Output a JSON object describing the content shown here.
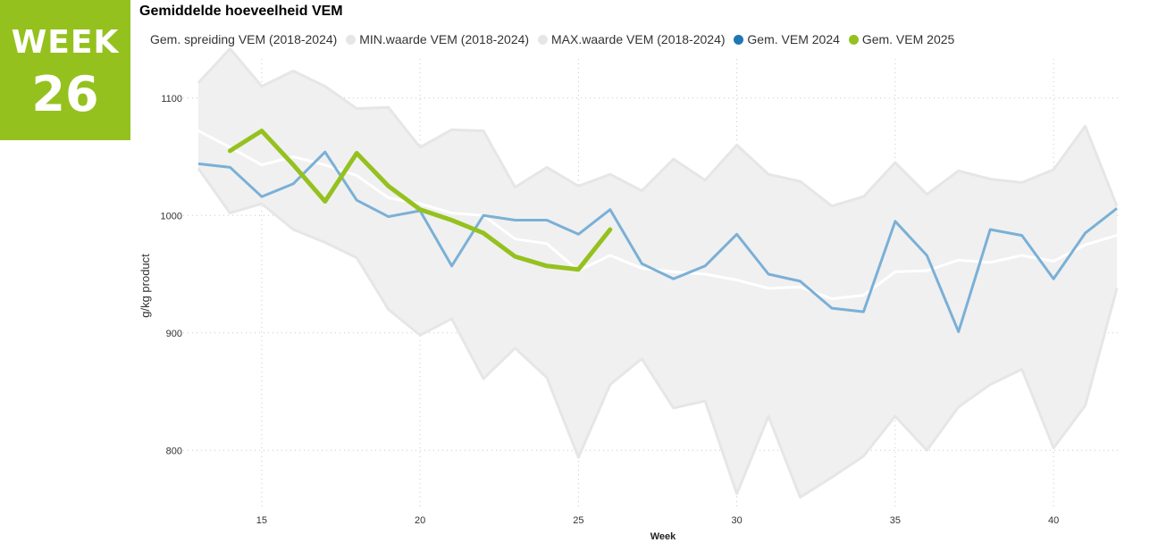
{
  "badge": {
    "label": "WEEK",
    "number": "26",
    "color": "#95c11f"
  },
  "chart_data": {
    "type": "line",
    "title": "Gemiddelde hoeveelheid VEM",
    "xlabel": "Week",
    "ylabel": "g/kg product",
    "xlim": [
      13,
      42
    ],
    "ylim": [
      750,
      1150
    ],
    "x_ticks": [
      15,
      20,
      25,
      30,
      35,
      40
    ],
    "y_ticks": [
      800,
      900,
      1000,
      1100
    ],
    "grid": true,
    "legend_position": "top",
    "x": [
      13,
      14,
      15,
      16,
      17,
      18,
      19,
      20,
      21,
      22,
      23,
      24,
      25,
      26,
      27,
      28,
      29,
      30,
      31,
      32,
      33,
      34,
      35,
      36,
      37,
      38,
      39,
      40,
      41,
      42
    ],
    "series": [
      {
        "name": "Gem. spreiding VEM (2018-2024)",
        "color": "#ffffff",
        "role": "mean-line",
        "values": [
          1072,
          1058,
          1043,
          1050,
          1043,
          1034,
          1015,
          1010,
          1002,
          1000,
          980,
          976,
          953,
          966,
          955,
          952,
          950,
          945,
          938,
          939,
          929,
          932,
          952,
          953,
          962,
          960,
          966,
          961,
          975,
          983
        ]
      },
      {
        "name": "MIN.waarde VEM (2018-2024)",
        "color": "#e6e6e6",
        "role": "band-min",
        "values": [
          1040,
          1002,
          1010,
          988,
          977,
          964,
          920,
          898,
          912,
          861,
          887,
          862,
          794,
          856,
          878,
          836,
          842,
          763,
          829,
          760,
          777,
          795,
          829,
          800,
          837,
          856,
          869,
          802,
          838,
          938
        ]
      },
      {
        "name": "MAX.waarde VEM (2018-2024)",
        "color": "#e6e6e6",
        "role": "band-max",
        "values": [
          1113,
          1142,
          1110,
          1123,
          1110,
          1091,
          1092,
          1058,
          1073,
          1072,
          1024,
          1041,
          1025,
          1035,
          1021,
          1048,
          1030,
          1060,
          1035,
          1029,
          1008,
          1016,
          1045,
          1018,
          1038,
          1031,
          1028,
          1039,
          1076,
          1008
        ]
      },
      {
        "name": "Gem. VEM 2024",
        "color": "#1f77b4",
        "line_color": "#7ab0d6",
        "role": "line",
        "values": [
          1044,
          1041,
          1016,
          1027,
          1054,
          1013,
          999,
          1004,
          957,
          1000,
          996,
          996,
          984,
          1005,
          959,
          946,
          957,
          984,
          950,
          944,
          921,
          918,
          995,
          966,
          901,
          988,
          983,
          946,
          985,
          1006
        ]
      },
      {
        "name": "Gem. VEM 2025",
        "color": "#95c11f",
        "role": "line-bold",
        "values": [
          null,
          1055,
          1072,
          1043,
          1012,
          1053,
          1025,
          1005,
          996,
          985,
          965,
          957,
          954,
          988,
          null,
          null,
          null,
          null,
          null,
          null,
          null,
          null,
          null,
          null,
          null,
          null,
          null,
          null,
          null,
          null
        ]
      }
    ]
  }
}
